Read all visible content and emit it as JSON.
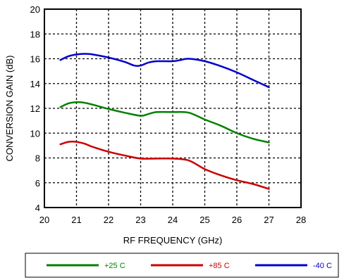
{
  "chart_data": {
    "type": "line",
    "title": "",
    "xlabel": "RF FREQUENCY (GHz)",
    "ylabel": "CONVERSION GAIN (dB)",
    "xlim": [
      20,
      28
    ],
    "ylim": [
      4,
      20
    ],
    "x_ticks": [
      20,
      21,
      22,
      23,
      24,
      25,
      26,
      27,
      28
    ],
    "y_ticks": [
      4,
      6,
      8,
      10,
      12,
      14,
      16,
      18,
      20
    ],
    "grid": true,
    "legend_position": "bottom",
    "series": [
      {
        "name": "+25 C",
        "color": "#008000",
        "x": [
          20.5,
          20.75,
          21.0,
          21.25,
          21.5,
          22.0,
          22.5,
          23.0,
          23.25,
          23.5,
          24.0,
          24.5,
          25.0,
          25.5,
          26.0,
          26.5,
          27.0
        ],
        "y": [
          12.1,
          12.4,
          12.5,
          12.45,
          12.3,
          11.95,
          11.65,
          11.4,
          11.55,
          11.7,
          11.7,
          11.65,
          11.1,
          10.6,
          10.0,
          9.55,
          9.25
        ]
      },
      {
        "name": "+85 C",
        "color": "#cc0000",
        "x": [
          20.5,
          20.75,
          21.0,
          21.25,
          21.5,
          22.0,
          22.5,
          23.0,
          23.5,
          24.0,
          24.5,
          25.0,
          25.5,
          26.0,
          26.5,
          27.0
        ],
        "y": [
          9.1,
          9.3,
          9.3,
          9.15,
          8.9,
          8.5,
          8.2,
          7.95,
          7.95,
          7.95,
          7.8,
          7.1,
          6.6,
          6.2,
          5.9,
          5.5
        ]
      },
      {
        "name": "-40 C",
        "color": "#0000cc",
        "x": [
          20.5,
          20.75,
          21.0,
          21.25,
          21.5,
          22.0,
          22.5,
          22.8,
          23.0,
          23.25,
          23.5,
          24.0,
          24.25,
          24.5,
          25.0,
          25.5,
          26.0,
          26.5,
          27.0
        ],
        "y": [
          15.9,
          16.2,
          16.35,
          16.4,
          16.35,
          16.1,
          15.75,
          15.45,
          15.45,
          15.7,
          15.8,
          15.8,
          15.9,
          16.0,
          15.8,
          15.4,
          14.9,
          14.3,
          13.7
        ]
      }
    ]
  }
}
